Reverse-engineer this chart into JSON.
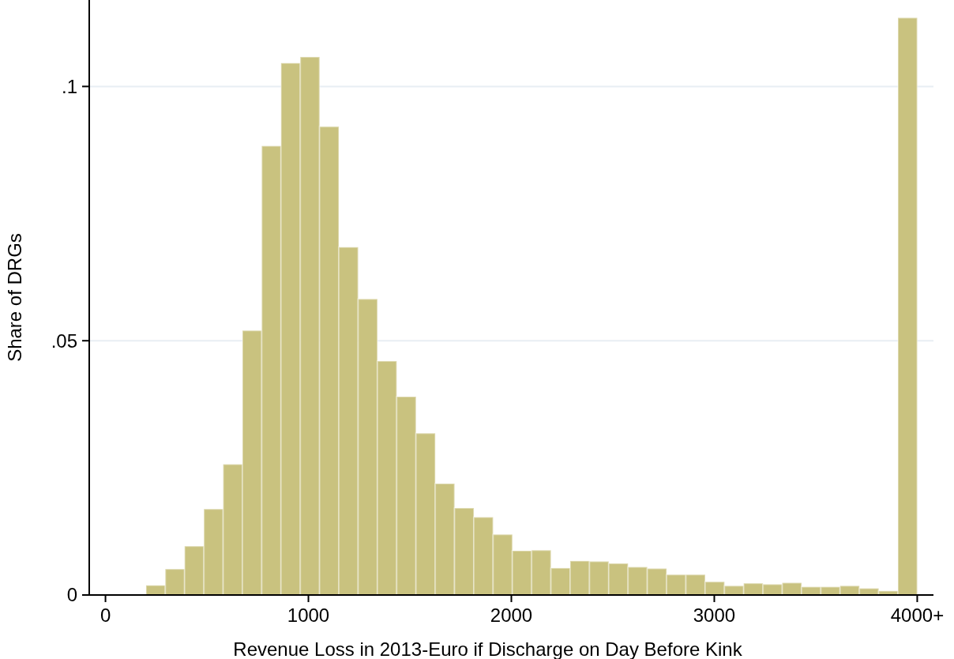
{
  "chart_data": {
    "type": "histogram",
    "xlabel": "Revenue Loss in 2013-Euro if Discharge on Day Before Kink",
    "ylabel": "Share of DRGs",
    "bins": [
      200,
      295,
      390,
      485,
      580,
      675,
      770,
      865,
      960,
      1055,
      1150,
      1245,
      1340,
      1435,
      1530,
      1625,
      1720,
      1815,
      1910,
      2005,
      2100,
      2195,
      2290,
      2385,
      2480,
      2575,
      2670,
      2765,
      2860,
      2955,
      3050,
      3145,
      3240,
      3335,
      3430,
      3525,
      3620,
      3715,
      3810,
      3905,
      4000
    ],
    "values": [
      0.0019,
      0.0051,
      0.0096,
      0.0169,
      0.0257,
      0.052,
      0.0883,
      0.1046,
      0.1058,
      0.0921,
      0.0684,
      0.0582,
      0.046,
      0.039,
      0.0318,
      0.0219,
      0.0171,
      0.0153,
      0.0119,
      0.0087,
      0.0088,
      0.0053,
      0.0067,
      0.0066,
      0.0062,
      0.0055,
      0.0052,
      0.004,
      0.004,
      0.0026,
      0.0018,
      0.0023,
      0.0021,
      0.0024,
      0.0016,
      0.0016,
      0.0018,
      0.0013,
      0.0008,
      0.1135
    ],
    "color": "#c9c27f",
    "xlim": [
      -80,
      4080
    ],
    "xticks": [
      0,
      1000,
      2000,
      3000,
      {
        "value": 4000,
        "label": "4000+"
      }
    ],
    "ylim": [
      0,
      0.117
    ],
    "yticks": [
      0,
      {
        "value": 0.05,
        "label": ".05"
      },
      {
        "value": 0.1,
        "label": ".1"
      }
    ],
    "grid": "y"
  }
}
